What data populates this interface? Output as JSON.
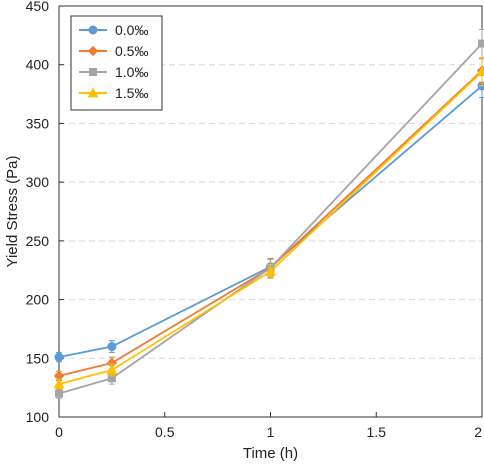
{
  "chart_data": {
    "type": "line",
    "title": "",
    "xlabel": "Time (h)",
    "ylabel": "Yield Stress (Pa)",
    "xlim": [
      0,
      2
    ],
    "ylim": [
      100,
      450
    ],
    "x_ticks": [
      0,
      0.5,
      1,
      1.5,
      2
    ],
    "x_tick_labels": [
      "0",
      "0.5",
      "1",
      "1.5",
      "2"
    ],
    "y_ticks": [
      100,
      150,
      200,
      250,
      300,
      350,
      400,
      450
    ],
    "y_tick_labels": [
      "100",
      "150",
      "200",
      "250",
      "300",
      "350",
      "400",
      "450"
    ],
    "grid": "horizontal dashed",
    "legend_position": "top-left",
    "x": [
      0,
      0.25,
      1,
      2
    ],
    "series": [
      {
        "name": "0.0‰",
        "color": "#5B9BD5",
        "marker": "circle",
        "values": [
          151,
          160,
          228,
          382
        ],
        "errors": [
          4,
          5,
          7,
          10
        ]
      },
      {
        "name": "0.5‰",
        "color": "#ED7D31",
        "marker": "diamond",
        "values": [
          135,
          146,
          227,
          395
        ],
        "errors": [
          4,
          5,
          8,
          10
        ]
      },
      {
        "name": "1.0‰",
        "color": "#A5A5A5",
        "marker": "square",
        "values": [
          120,
          133,
          227,
          418
        ],
        "errors": [
          4,
          5,
          7,
          12
        ]
      },
      {
        "name": "1.5‰",
        "color": "#FFC000",
        "marker": "triangle",
        "values": [
          128,
          140,
          224,
          394
        ],
        "errors": [
          4,
          5,
          6,
          12
        ]
      }
    ]
  }
}
